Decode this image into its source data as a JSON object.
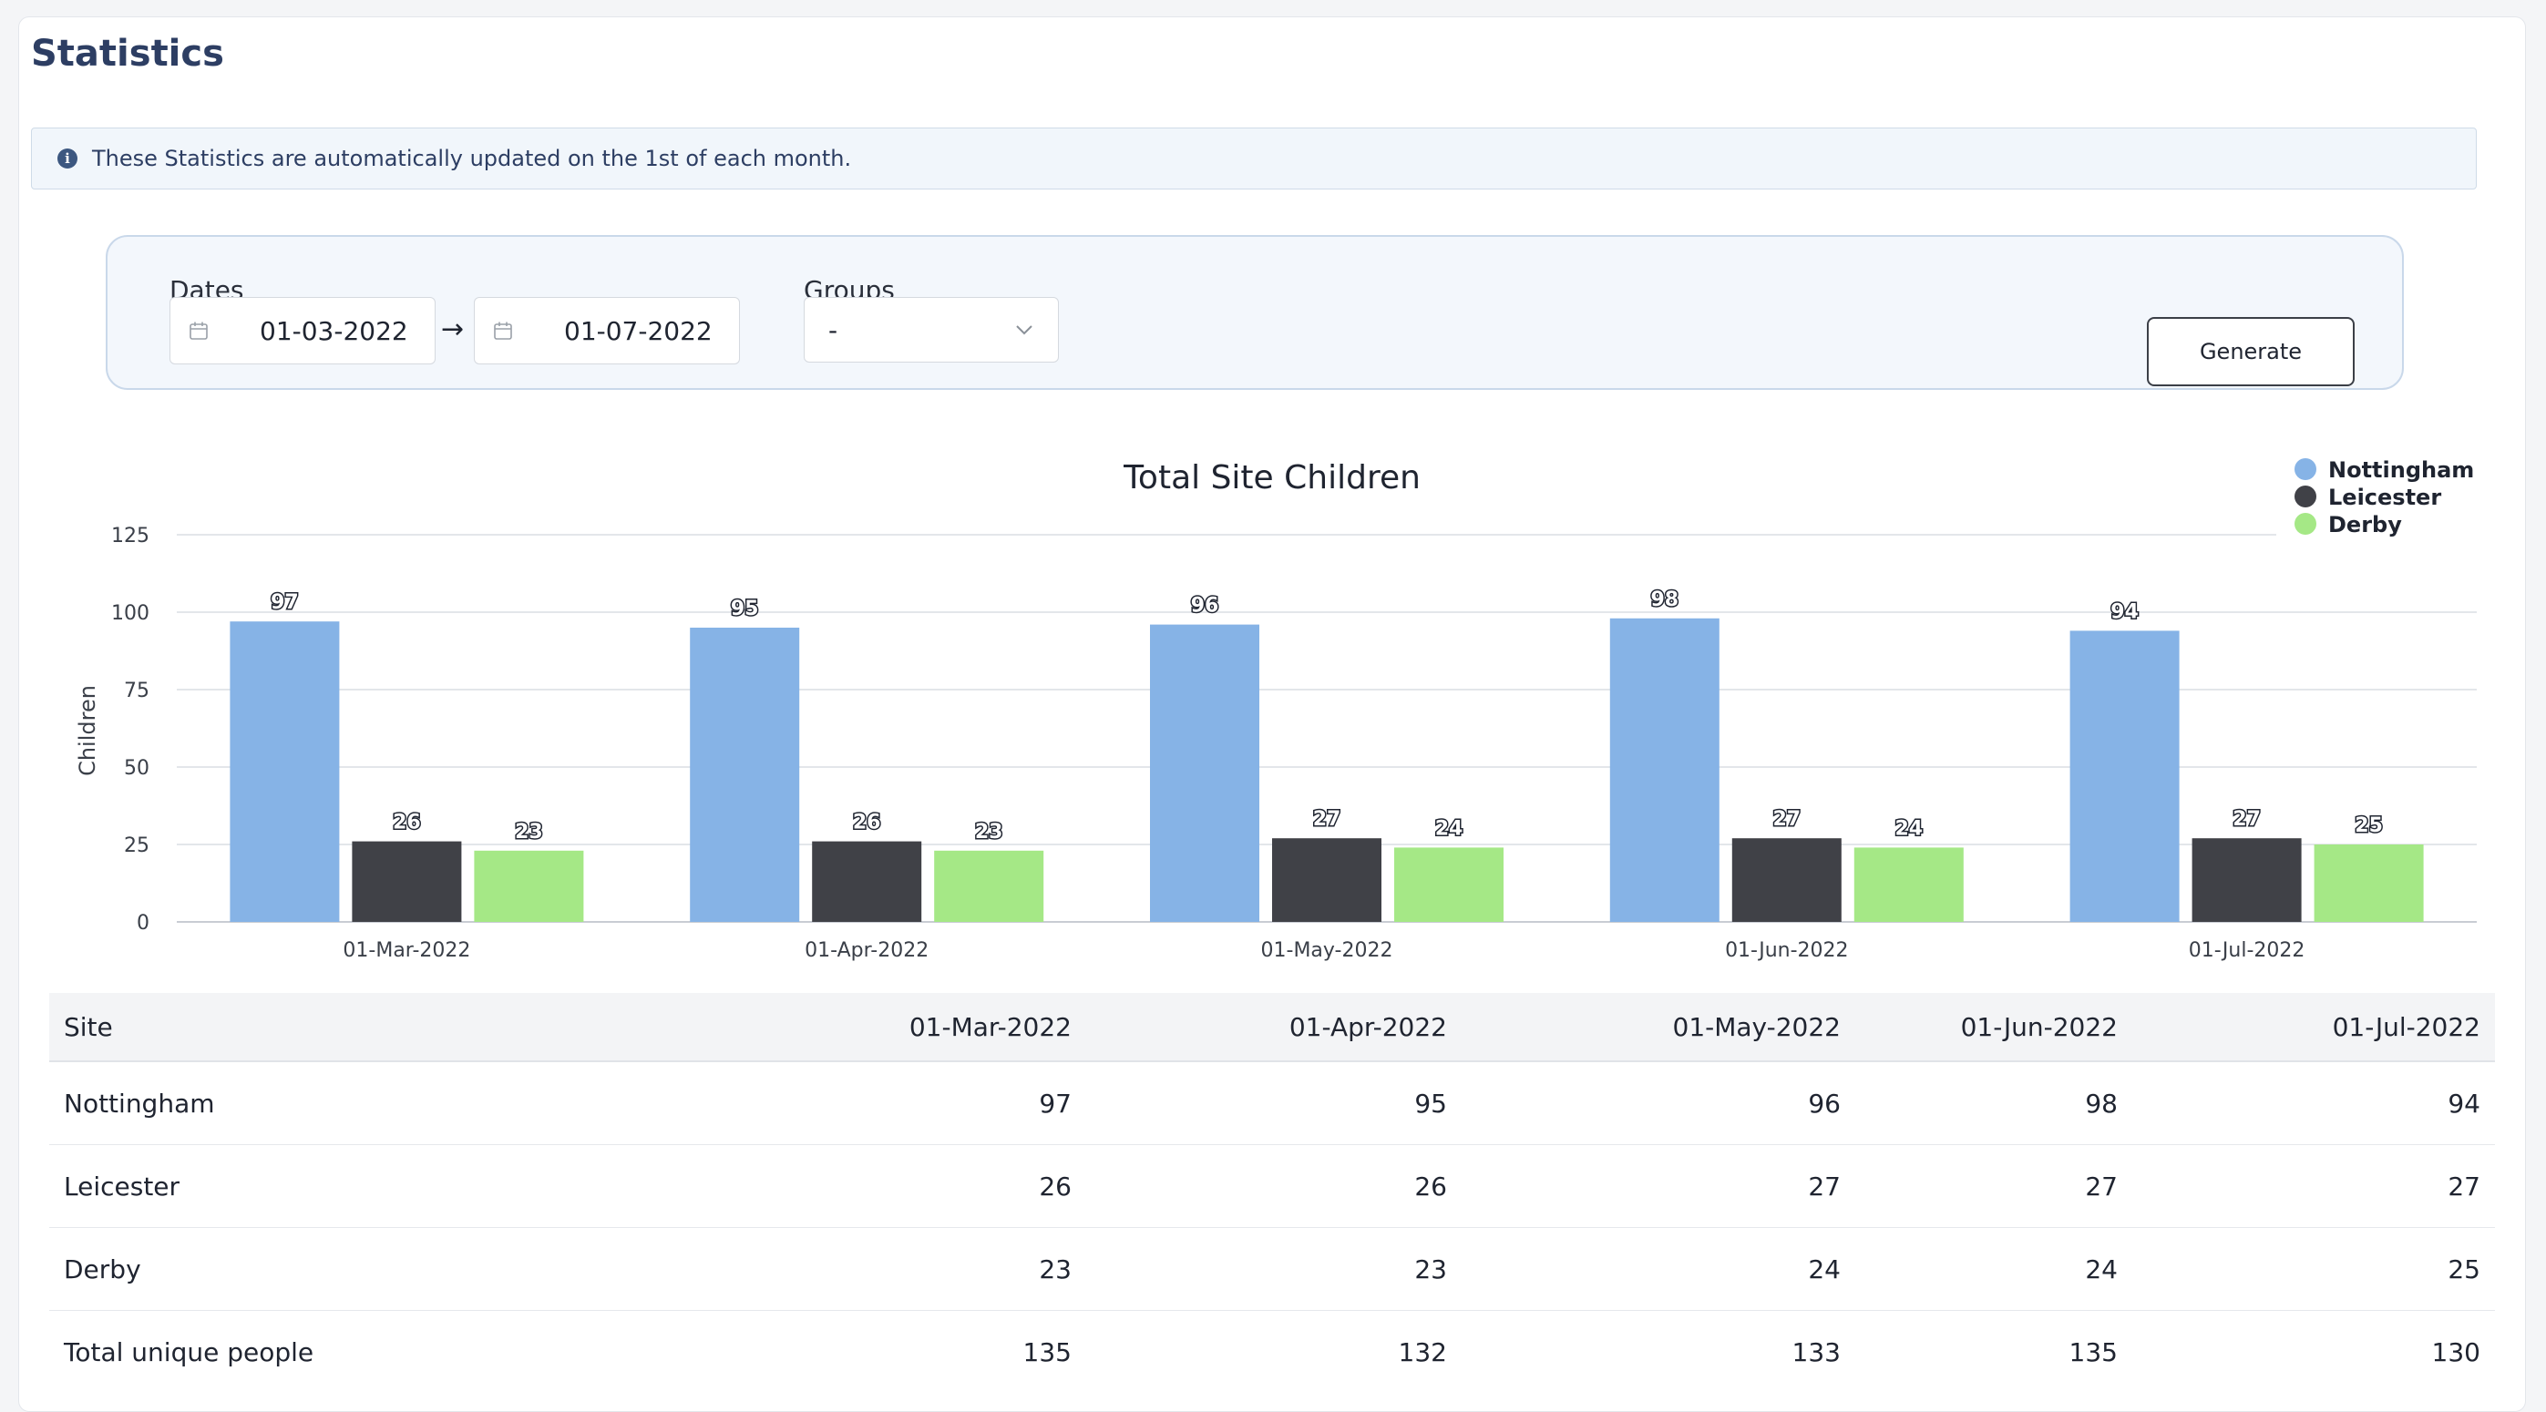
{
  "page": {
    "title": "Statistics"
  },
  "info": {
    "text": "These Statistics are automatically updated on the 1st of each month.",
    "icon": "info-icon"
  },
  "filters": {
    "dates_label": "Dates",
    "date_from": "01-03-2022",
    "arrow": "→",
    "date_to": "01-07-2022",
    "groups_label": "Groups",
    "groups_value": "-",
    "generate_label": "Generate"
  },
  "colors": {
    "nottingham": "#86b3e6",
    "leicester": "#404147",
    "derby": "#a5e886",
    "title": "#2d3e63"
  },
  "chart_data": {
    "type": "bar",
    "title": "Total Site Children",
    "xlabel": "",
    "ylabel": "Children",
    "ylim": [
      0,
      125
    ],
    "yticks": [
      0,
      25,
      50,
      75,
      100,
      125
    ],
    "categories": [
      "01-Mar-2022",
      "01-Apr-2022",
      "01-May-2022",
      "01-Jun-2022",
      "01-Jul-2022"
    ],
    "series": [
      {
        "name": "Nottingham",
        "color": "#86b3e6",
        "values": [
          97,
          95,
          96,
          98,
          94
        ]
      },
      {
        "name": "Leicester",
        "color": "#404147",
        "values": [
          26,
          26,
          27,
          27,
          27
        ]
      },
      {
        "name": "Derby",
        "color": "#a5e886",
        "values": [
          23,
          23,
          24,
          24,
          25
        ]
      }
    ],
    "legend_position": "top-right",
    "grid": true
  },
  "table": {
    "headers": [
      "Site",
      "01-Mar-2022",
      "01-Apr-2022",
      "01-May-2022",
      "01-Jun-2022",
      "01-Jul-2022"
    ],
    "rows": [
      {
        "site": "Nottingham",
        "values": [
          "97",
          "95",
          "96",
          "98",
          "94"
        ]
      },
      {
        "site": "Leicester",
        "values": [
          "26",
          "26",
          "27",
          "27",
          "27"
        ]
      },
      {
        "site": "Derby",
        "values": [
          "23",
          "23",
          "24",
          "24",
          "25"
        ]
      },
      {
        "site": "Total unique people",
        "values": [
          "135",
          "132",
          "133",
          "135",
          "130"
        ]
      }
    ]
  }
}
